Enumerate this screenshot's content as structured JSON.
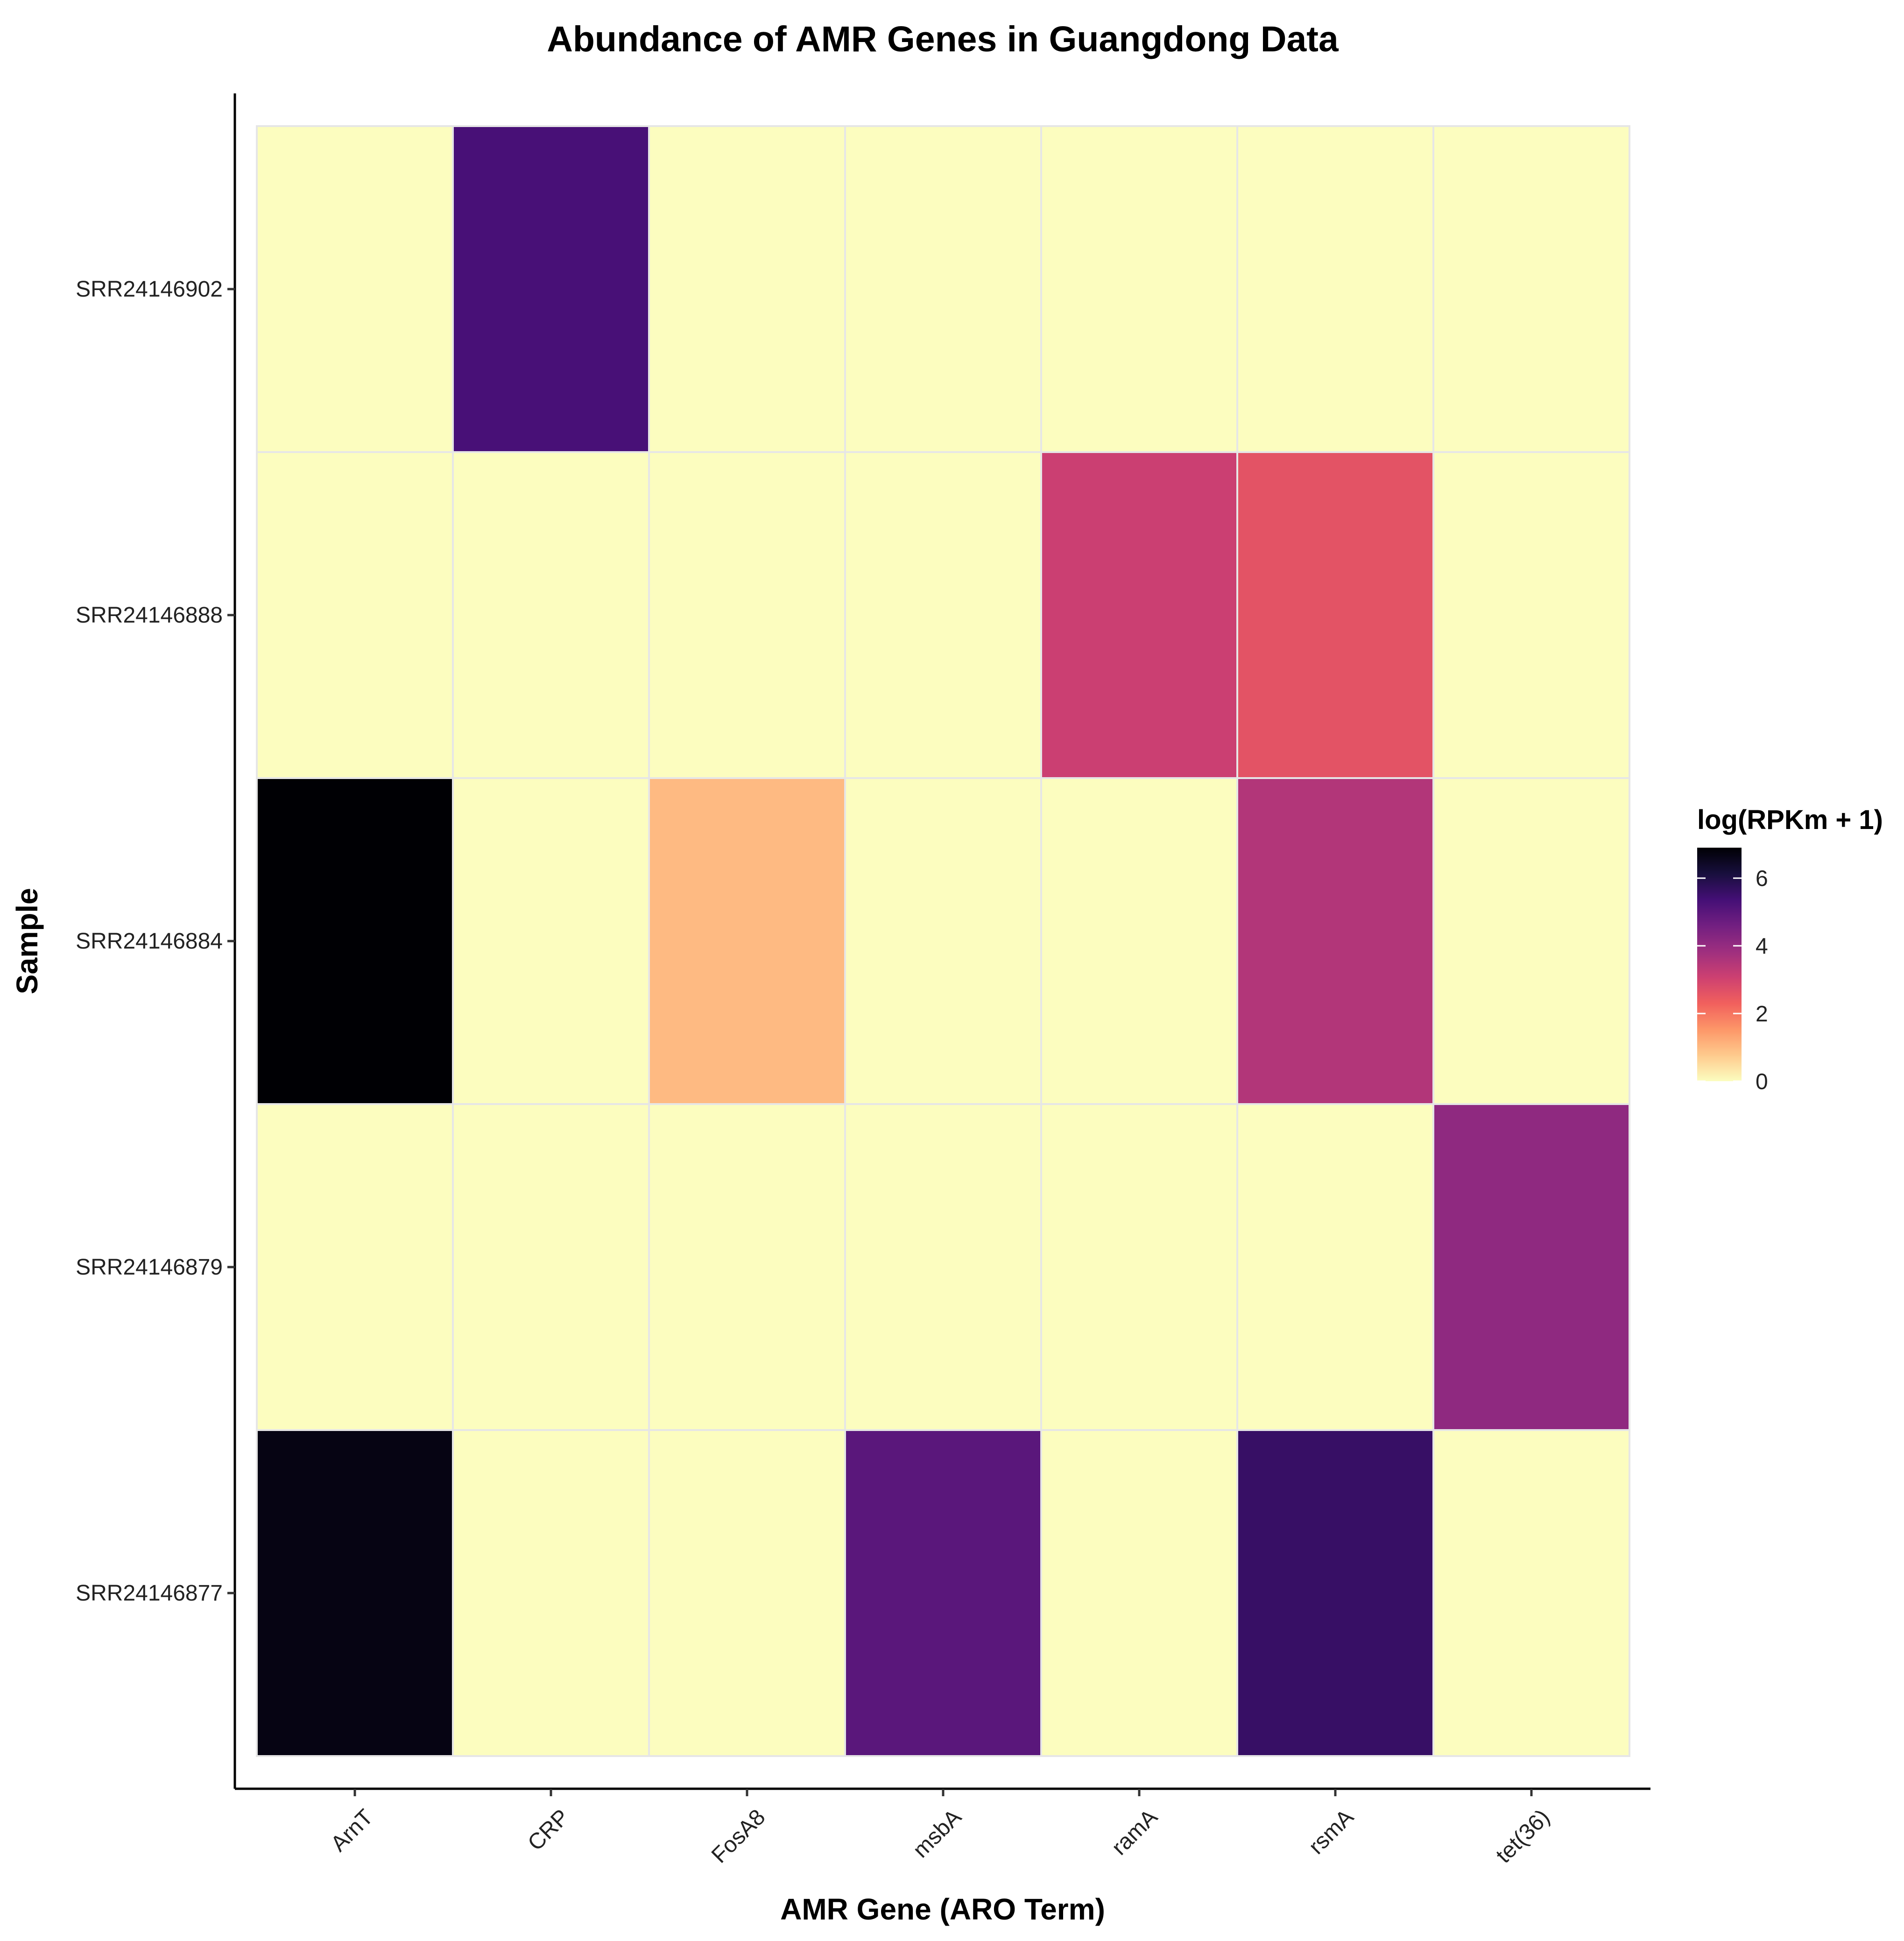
{
  "chart_data": {
    "type": "heatmap",
    "title": "Abundance of AMR Genes in Guangdong Data",
    "xlabel": "AMR Gene (ARO Term)",
    "ylabel": "Sample",
    "x_categories": [
      "ArnT",
      "CRP",
      "FosA8",
      "msbA",
      "ramA",
      "rsmA",
      "tet(36)"
    ],
    "y_categories": [
      "SRR24146902",
      "SRR24146888",
      "SRR24146884",
      "SRR24146879",
      "SRR24146877"
    ],
    "values": [
      [
        0.0,
        5.3,
        0.0,
        0.0,
        0.0,
        0.0,
        0.0
      ],
      [
        0.0,
        0.0,
        0.0,
        0.0,
        3.1,
        2.6,
        0.0
      ],
      [
        6.9,
        0.0,
        1.0,
        0.0,
        0.0,
        3.5,
        0.0
      ],
      [
        0.0,
        0.0,
        0.0,
        0.0,
        0.0,
        0.0,
        4.1
      ],
      [
        6.7,
        0.0,
        0.0,
        5.0,
        0.0,
        5.6,
        0.0
      ]
    ],
    "legend": {
      "title": "log(RPKm + 1)",
      "ticks": [
        "0",
        "2",
        "4",
        "6"
      ],
      "range": [
        0,
        6.9
      ],
      "placement": "right"
    },
    "colormap": [
      "#fcfdbf",
      "#feca8d",
      "#fd9668",
      "#f1605d",
      "#cd4071",
      "#9e2f7f",
      "#721f81",
      "#440f76",
      "#180f3d",
      "#000004"
    ],
    "grid": false
  }
}
